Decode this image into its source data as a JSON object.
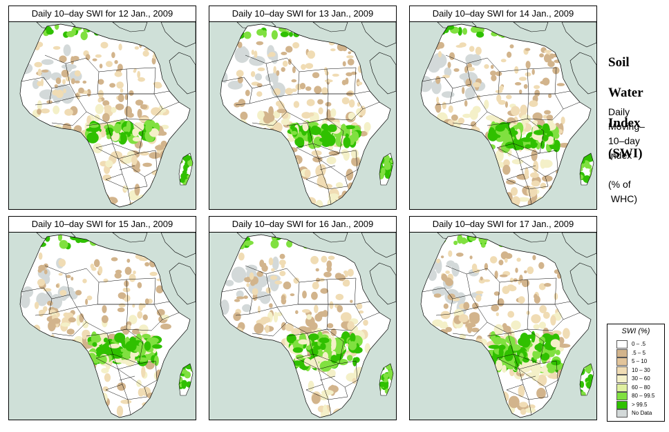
{
  "panels": [
    {
      "title": "Daily 10–day SWI for  12 Jan., 2009",
      "wetness": 0
    },
    {
      "title": "Daily 10–day SWI for  13 Jan., 2009",
      "wetness": 1
    },
    {
      "title": "Daily 10–day SWI for  14 Jan., 2009",
      "wetness": 2
    },
    {
      "title": "Daily 10–day SWI for  15 Jan., 2009",
      "wetness": 3
    },
    {
      "title": "Daily 10–day SWI for  16 Jan., 2009",
      "wetness": 4
    },
    {
      "title": "Daily 10–day SWI for  17 Jan., 2009",
      "wetness": 5
    }
  ],
  "side": {
    "title_lines": [
      "Soil",
      "Water",
      "Index",
      "(SWI)"
    ],
    "subtitle_lines": [
      "Daily",
      "Moving–",
      "10–day",
      "Index",
      "",
      "(% of",
      " WHC)"
    ]
  },
  "legend": {
    "title": "SWI (%)",
    "items": [
      {
        "label": "0 – .5",
        "color": "#ffffff"
      },
      {
        "label": ".5 – 5",
        "color": "#d2b48c"
      },
      {
        "label": "5 – 10",
        "color": "#e2c49a"
      },
      {
        "label": "10 – 30",
        "color": "#f0dcb4"
      },
      {
        "label": "30 – 60",
        "color": "#f4f0c8"
      },
      {
        "label": "60 – 80",
        "color": "#e0f0a0"
      },
      {
        "label": "80 – 99.5",
        "color": "#80e040"
      },
      {
        "label": "> 99.5",
        "color": "#30c000"
      },
      {
        "label": "No Data",
        "color": "#d3d9d9"
      }
    ]
  },
  "colors": {
    "ocean": "#cfe0d8",
    "land_dry": "#ffffff",
    "arid": "#d2b48c",
    "semi": "#f0dcb4",
    "moist": "#f4f0c8",
    "wet": "#80e040",
    "saturated": "#30c000",
    "nodata": "#d3d9d9",
    "border": "#000000"
  }
}
